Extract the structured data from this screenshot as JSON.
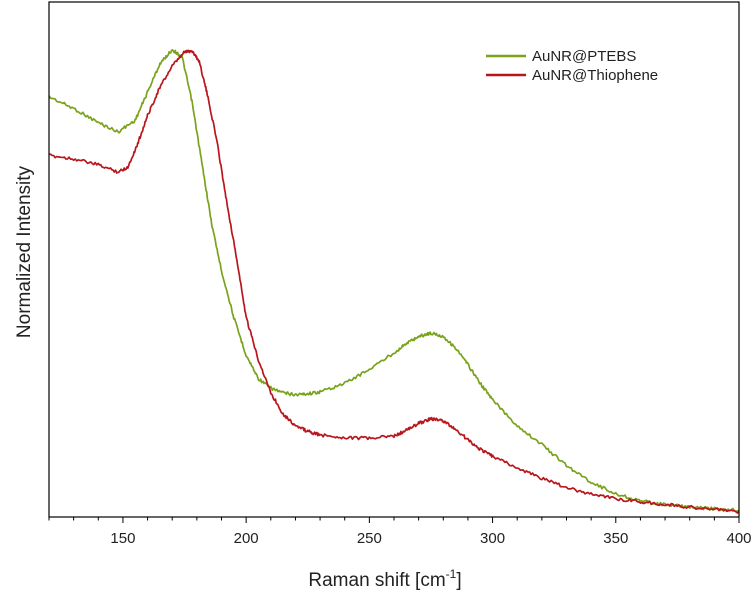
{
  "chart_data": {
    "type": "line",
    "title": "",
    "xlabel": {
      "text": "Raman shift [cm",
      "sup": "-1",
      "suffix": "]"
    },
    "ylabel": "Normalized Intensity",
    "xlim": [
      120,
      400
    ],
    "ylim": [
      0,
      1
    ],
    "x_ticks": [
      150,
      200,
      250,
      300,
      350,
      400
    ],
    "x_ticks_labeled": [
      "150",
      "200",
      "250",
      "300",
      "350",
      "400"
    ],
    "y_tick_labels": false,
    "grid": false,
    "legend_position": "top-right",
    "series": [
      {
        "name": "AuNR@PTEBS",
        "color": "#7aa21a",
        "x": [
          120,
          130,
          140,
          148,
          155,
          160,
          165,
          170,
          174,
          178,
          182,
          186,
          190,
          195,
          200,
          205,
          210,
          215,
          220,
          225,
          230,
          240,
          250,
          260,
          265,
          270,
          275,
          280,
          285,
          290,
          295,
          300,
          310,
          320,
          330,
          340,
          350,
          360,
          370,
          380,
          390,
          400
        ],
        "y": [
          0.89,
          0.865,
          0.835,
          0.815,
          0.84,
          0.9,
          0.96,
          0.99,
          0.975,
          0.88,
          0.75,
          0.62,
          0.52,
          0.42,
          0.34,
          0.29,
          0.27,
          0.26,
          0.256,
          0.258,
          0.262,
          0.28,
          0.31,
          0.345,
          0.365,
          0.38,
          0.387,
          0.38,
          0.355,
          0.32,
          0.28,
          0.245,
          0.19,
          0.15,
          0.105,
          0.07,
          0.045,
          0.03,
          0.022,
          0.017,
          0.013,
          0.01
        ]
      },
      {
        "name": "AuNR@Thiophene",
        "color": "#b8161c",
        "x": [
          120,
          130,
          140,
          148,
          152,
          156,
          160,
          165,
          170,
          175,
          178,
          181,
          184,
          188,
          192,
          196,
          200,
          205,
          210,
          215,
          220,
          225,
          230,
          240,
          250,
          260,
          265,
          270,
          275,
          280,
          285,
          290,
          295,
          300,
          310,
          320,
          330,
          340,
          350,
          360,
          370,
          380,
          390,
          400
        ],
        "y": [
          0.765,
          0.758,
          0.745,
          0.73,
          0.74,
          0.79,
          0.85,
          0.91,
          0.955,
          0.985,
          0.988,
          0.965,
          0.9,
          0.8,
          0.67,
          0.55,
          0.42,
          0.33,
          0.26,
          0.215,
          0.19,
          0.178,
          0.17,
          0.165,
          0.163,
          0.168,
          0.18,
          0.195,
          0.205,
          0.2,
          0.182,
          0.16,
          0.14,
          0.125,
          0.1,
          0.078,
          0.058,
          0.045,
          0.035,
          0.028,
          0.022,
          0.017,
          0.012,
          0.007
        ]
      }
    ]
  }
}
